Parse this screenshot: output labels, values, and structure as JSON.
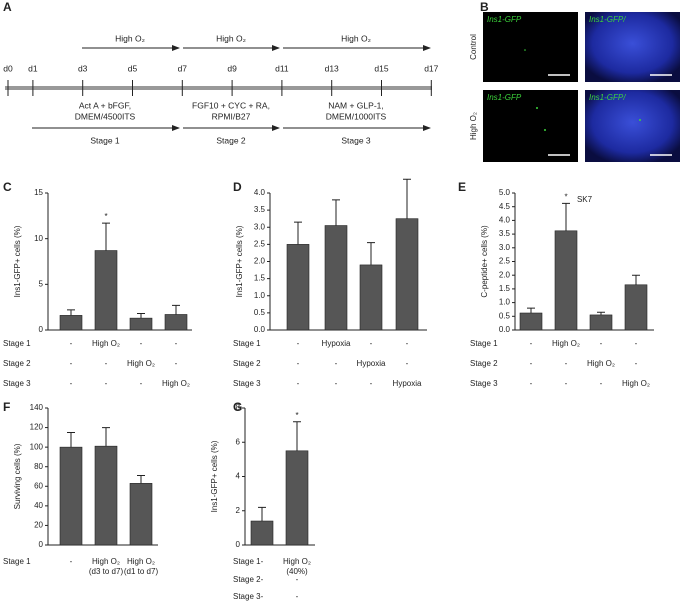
{
  "panel_labels": [
    "A",
    "B",
    "C",
    "D",
    "E",
    "F",
    "G"
  ],
  "timeline": {
    "days": [
      "d0",
      "d1",
      "d3",
      "d5",
      "d7",
      "d9",
      "d11",
      "d13",
      "d15",
      "d17"
    ],
    "oxygen": [
      "High O₂",
      "High O₂",
      "High O₂"
    ],
    "stages": [
      {
        "media": [
          "Act A + bFGF,",
          "DMEM/4500ITS"
        ],
        "label": "Stage 1"
      },
      {
        "media": [
          "FGF10 + CYC + RA,",
          "RPMI/B27"
        ],
        "label": "Stage 2"
      },
      {
        "media": [
          "NAM + GLP-1,",
          "DMEM/1000ITS"
        ],
        "label": "Stage 3"
      }
    ]
  },
  "images": {
    "rows": [
      "Control",
      "High O₂"
    ],
    "columns": [
      "Ins1-GFP",
      "Ins1-GFP/"
    ]
  },
  "chart_data": [
    {
      "type": "bar",
      "y_label": "Ins1-GFP+ cells (%)",
      "color": "#565656",
      "values": [
        1.6,
        8.7,
        1.3,
        1.7
      ],
      "errors": [
        0.6,
        3.0,
        0.5,
        1.0
      ],
      "ylim": [
        0,
        15
      ],
      "yticks": [
        0,
        5,
        10,
        15
      ],
      "annotations": [
        {
          "index": 1,
          "text": "*"
        }
      ],
      "conditions": [
        {
          "label": "Stage 1",
          "values": [
            "-",
            "High O₂",
            "-",
            "-"
          ]
        },
        {
          "label": "Stage 2",
          "values": [
            "-",
            "-",
            "High O₂",
            "-"
          ]
        },
        {
          "label": "Stage 3",
          "values": [
            "-",
            "-",
            "-",
            "High O₂"
          ]
        }
      ]
    },
    {
      "type": "bar",
      "y_label": "Ins1-GFP+ cells (%)",
      "color": "#565656",
      "values": [
        2.5,
        3.05,
        1.9,
        3.25
      ],
      "errors": [
        0.65,
        0.75,
        0.65,
        1.15
      ],
      "ylim": [
        0,
        4
      ],
      "yticks": [
        {
          "value": 0,
          "label": "0.0"
        },
        0.5,
        {
          "value": 1,
          "label": "1.0"
        },
        1.5,
        {
          "value": 2,
          "label": "2.0"
        },
        2.5,
        {
          "value": 3,
          "label": "3.0"
        },
        3.5,
        {
          "value": 4,
          "label": "4.0"
        }
      ],
      "conditions": [
        {
          "label": "Stage 1",
          "values": [
            "-",
            "Hypoxia",
            "-",
            "-"
          ]
        },
        {
          "label": "Stage 2",
          "values": [
            "-",
            "-",
            "Hypoxia",
            "-"
          ]
        },
        {
          "label": "Stage 3",
          "values": [
            "-",
            "-",
            "-",
            "Hypoxia"
          ]
        }
      ]
    },
    {
      "type": "bar",
      "title": "SK7",
      "y_label": "C-peptide+ cells (%)",
      "color": "#565656",
      "values": [
        0.62,
        3.62,
        0.55,
        1.65
      ],
      "errors": [
        0.18,
        1.0,
        0.1,
        0.35
      ],
      "ylim": [
        0,
        5
      ],
      "yticks": [
        {
          "value": 0,
          "label": "0.0"
        },
        0.5,
        {
          "value": 1,
          "label": "1.0"
        },
        1.5,
        {
          "value": 2,
          "label": "2.0"
        },
        2.5,
        {
          "value": 3,
          "label": "3.0"
        },
        3.5,
        {
          "value": 4,
          "label": "4.0"
        },
        4.5,
        {
          "value": 5,
          "label": "5.0"
        }
      ],
      "annotations": [
        {
          "index": 1,
          "text": "*"
        }
      ],
      "conditions": [
        {
          "label": "Stage 1",
          "values": [
            "-",
            "High O₂",
            "-",
            "-"
          ]
        },
        {
          "label": "Stage 2",
          "values": [
            "-",
            "-",
            "High O₂",
            "-"
          ]
        },
        {
          "label": "Stage 3",
          "values": [
            "-",
            "-",
            "-",
            "High O₂"
          ]
        }
      ]
    },
    {
      "type": "bar",
      "y_label": "Surviving cells (%)",
      "color": "#565656",
      "values": [
        100,
        101,
        63
      ],
      "errors": [
        15,
        19,
        8
      ],
      "ylim": [
        0,
        140
      ],
      "yticks": [
        0,
        20,
        40,
        60,
        80,
        100,
        120,
        140
      ],
      "conditions": [
        {
          "label": "Stage 1",
          "values": [
            "-",
            [
              "High O₂",
              "(d3 to d7)"
            ],
            [
              "High O₂",
              "(d1 to d7)"
            ]
          ]
        }
      ]
    },
    {
      "type": "bar",
      "y_label": "Ins1-GFP+ cells (%)",
      "color": "#565656",
      "values": [
        1.4,
        5.5
      ],
      "errors": [
        0.8,
        1.7
      ],
      "ylim": [
        0,
        8
      ],
      "yticks": [
        0,
        2,
        4,
        6,
        8
      ],
      "annotations": [
        {
          "index": 1,
          "text": "*"
        }
      ],
      "conditions": [
        {
          "label": "Stage 1",
          "values": [
            "-",
            [
              "High O₂",
              "(40%)"
            ]
          ]
        },
        {
          "label": "Stage 2",
          "values": [
            "-",
            "-"
          ]
        },
        {
          "label": "Stage 3",
          "values": [
            "-",
            "-"
          ]
        }
      ]
    }
  ]
}
